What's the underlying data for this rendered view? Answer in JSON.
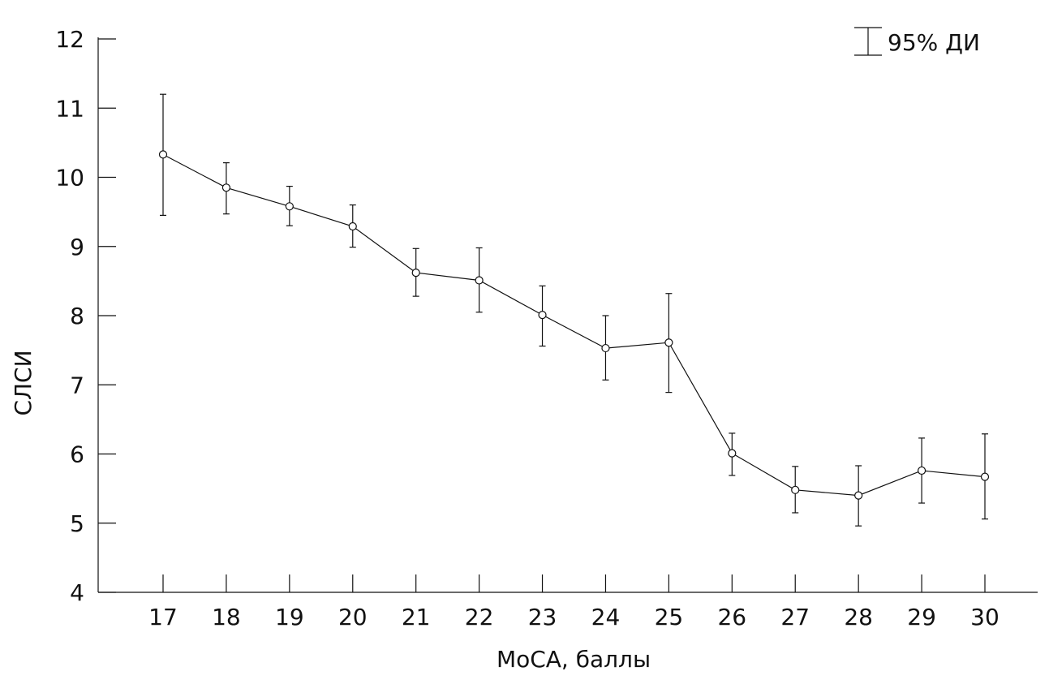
{
  "chart_data": {
    "type": "line",
    "title": "",
    "xlabel": "MoCA, баллы",
    "ylabel": "СЛСИ",
    "x": [
      17,
      18,
      19,
      20,
      21,
      22,
      23,
      24,
      25,
      26,
      27,
      28,
      29,
      30
    ],
    "x_tick_labels": [
      "17",
      "18",
      "19",
      "20",
      "21",
      "22",
      "23",
      "24",
      "25",
      "26",
      "27",
      "28",
      "29",
      "30"
    ],
    "y_ticks": [
      4,
      5,
      6,
      7,
      8,
      9,
      10,
      11,
      12
    ],
    "y_tick_labels": [
      "4",
      "5",
      "6",
      "7",
      "8",
      "9",
      "10",
      "11",
      "12"
    ],
    "xlim": [
      16,
      31
    ],
    "ylim": [
      4,
      12
    ],
    "grid": false,
    "legend_position": "top-right",
    "series": [
      {
        "name": "СЛСИ",
        "values": [
          10.33,
          9.85,
          9.58,
          9.29,
          8.62,
          8.51,
          8.01,
          7.53,
          7.61,
          6.01,
          5.48,
          5.4,
          5.76,
          5.67
        ],
        "ci_lower": [
          9.45,
          9.47,
          9.3,
          8.99,
          8.28,
          8.05,
          7.56,
          7.07,
          6.89,
          5.69,
          5.15,
          4.96,
          5.29,
          5.06
        ],
        "ci_upper": [
          11.2,
          10.21,
          9.87,
          9.6,
          8.97,
          8.98,
          8.43,
          8.0,
          8.32,
          6.3,
          5.82,
          5.83,
          6.23,
          6.29
        ]
      }
    ],
    "legend": {
      "label": "95% ДИ"
    },
    "colors": {
      "line": "#111111",
      "marker_fill": "#ffffff",
      "axis": "#111111"
    }
  }
}
